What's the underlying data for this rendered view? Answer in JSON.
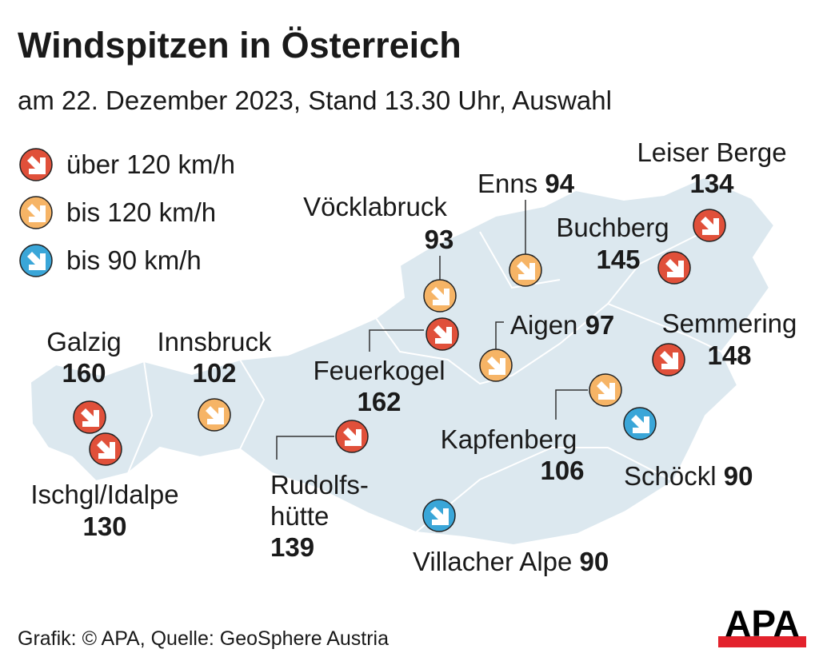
{
  "title": "Windspitzen in Österreich",
  "subtitle": "am 22. Dezember 2023, Stand 13.30 Uhr, Auswahl",
  "colors": {
    "red": "#e0503a",
    "orange": "#f6b466",
    "blue": "#3aa6d8",
    "map": "#dce8ef"
  },
  "legend": [
    {
      "label": "über 120 km/h",
      "color": "red",
      "icon": "arrow-down-right-icon"
    },
    {
      "label": "bis 120 km/h",
      "color": "orange",
      "icon": "arrow-down-right-icon"
    },
    {
      "label": "bis 90 km/h",
      "color": "blue",
      "icon": "arrow-down-right-icon"
    }
  ],
  "stations": [
    {
      "name": "Leiser Berge",
      "value": "134",
      "category": "red"
    },
    {
      "name": "Enns",
      "value": "94",
      "category": "orange"
    },
    {
      "name": "Vöcklabruck",
      "value": "93",
      "category": "orange"
    },
    {
      "name": "Buchberg",
      "value": "145",
      "category": "red"
    },
    {
      "name": "Aigen",
      "value": "97",
      "category": "orange"
    },
    {
      "name": "Semmering",
      "value": "148",
      "category": "red"
    },
    {
      "name": "Galzig",
      "value": "160",
      "category": "red"
    },
    {
      "name": "Innsbruck",
      "value": "102",
      "category": "orange"
    },
    {
      "name": "Feuerkogel",
      "value": "162",
      "category": "red"
    },
    {
      "name": "Kapfenberg",
      "value": "106",
      "category": "orange"
    },
    {
      "name": "Schöckl",
      "value": "90",
      "category": "blue"
    },
    {
      "name": "Ischgl/Idalpe",
      "value": "130",
      "category": "red"
    },
    {
      "name": "Rudolfs-",
      "name2": "hütte",
      "value": "139",
      "category": "red"
    },
    {
      "name": "Villacher Alpe",
      "value": "90",
      "category": "blue"
    }
  ],
  "source": "Grafik: © APA, Quelle: GeoSphere Austria",
  "logo": "APA"
}
